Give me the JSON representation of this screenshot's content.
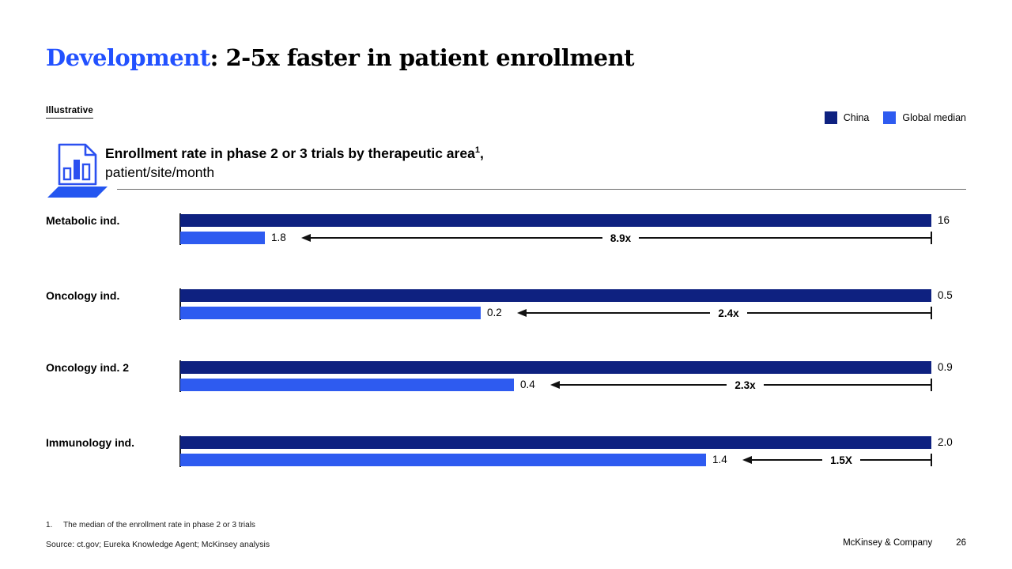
{
  "slide": {
    "title": {
      "highlight": "Development",
      "rest": ": 2-5x faster in patient enrollment"
    },
    "tag": "Illustrative",
    "chart_header": {
      "line1": "Enrollment rate in phase 2 or 3 trials by therapeutic area",
      "superscript": "1",
      "suffix": ",",
      "line2": "patient/site/month"
    },
    "footnote_number": "1.",
    "footnote_text": "The median of the enrollment rate in phase 2 or 3 trials",
    "source": "Source: ct.gov; Eureka Knowledge Agent; McKinsey analysis",
    "footer": {
      "company": "McKinsey & Company",
      "page": "26"
    }
  },
  "colors": {
    "title_accent": "#2251ff",
    "china_navy": "#0e2180",
    "global_blue": "#2e5bf0",
    "icon_blue": "#2b50f0"
  },
  "chart_data": {
    "type": "bar",
    "orientation": "horizontal",
    "title": "Enrollment rate in phase 2 or 3 trials by therapeutic area, patient/site/month",
    "unit": "patient/site/month",
    "categories": [
      "Metabolic ind.",
      "Oncology ind.",
      "Oncology ind. 2",
      "Immunology ind."
    ],
    "series": [
      {
        "name": "China",
        "color": "#0e2180",
        "values": [
          16,
          0.5,
          0.9,
          2.0
        ],
        "labels": [
          "16",
          "0.5",
          "0.9",
          "2.0"
        ]
      },
      {
        "name": "Global median",
        "color": "#2e5bf0",
        "values": [
          1.8,
          0.2,
          0.4,
          1.4
        ],
        "labels": [
          "1.8",
          "0.2",
          "0.4",
          "1.4"
        ]
      }
    ],
    "multipliers": [
      "8.9x",
      "2.4x",
      "2.3x",
      "1.5X"
    ],
    "legend_position": "top-right",
    "grid": false,
    "rows_scaled_independently": true
  }
}
